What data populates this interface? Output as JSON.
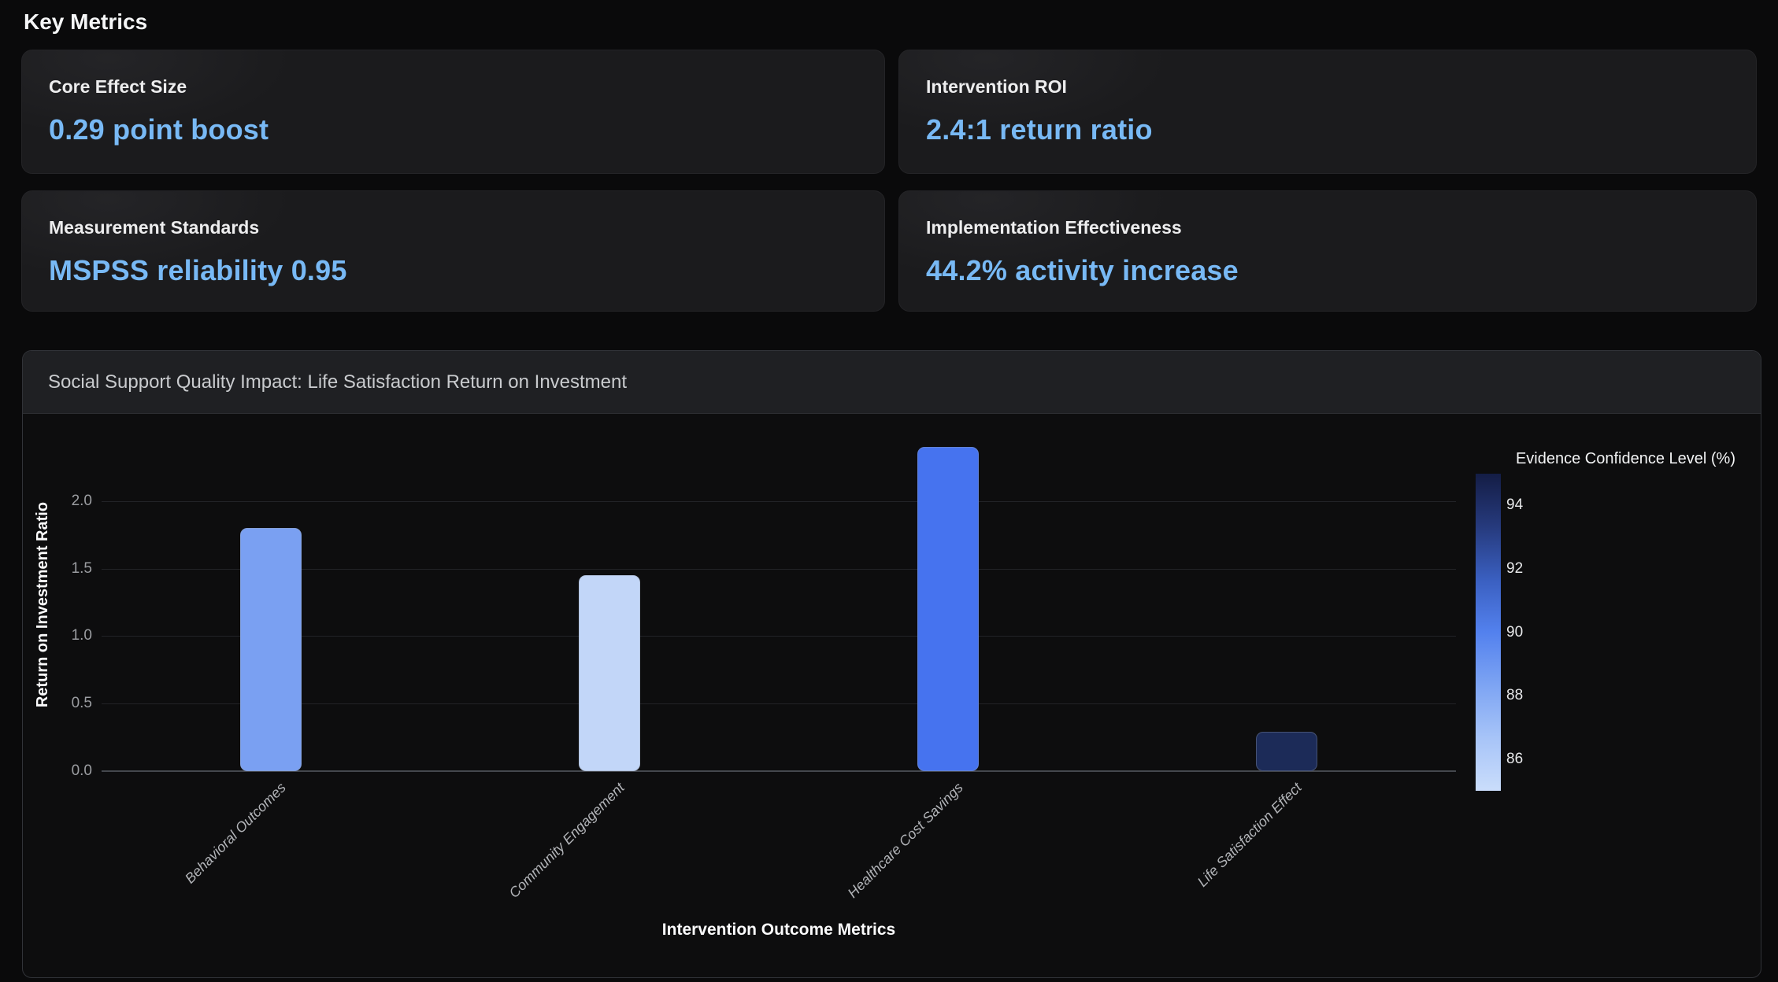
{
  "page": {
    "heading": "Key Metrics"
  },
  "metrics": [
    {
      "label": "Core Effect Size",
      "value": "0.29 point boost"
    },
    {
      "label": "Intervention ROI",
      "value": "2.4:1 return ratio"
    },
    {
      "label": "Measurement Standards",
      "value": "MSPSS reliability 0.95"
    },
    {
      "label": "Implementation Effectiveness",
      "value": "44.2% activity increase"
    }
  ],
  "colors": {
    "accent_value_text": "#78b9f5",
    "page_background": "#0a0a0b",
    "card_background": "#1b1b1d",
    "panel_background": "#0d0d0e",
    "panel_header": "#1f2023"
  },
  "chart_data": {
    "type": "bar",
    "title": "Social Support Quality Impact: Life Satisfaction Return on Investment",
    "xlabel": "Intervention Outcome Metrics",
    "ylabel": "Return on Investment Ratio",
    "categories": [
      "Behavioral Outcomes",
      "Community Engagement",
      "Healthcare Cost Savings",
      "Life Satisfaction Effect"
    ],
    "values": [
      1.8,
      1.45,
      2.4,
      0.29
    ],
    "bar_colors": [
      "#7aa0f2",
      "#c2d6f8",
      "#4673ef",
      "#1c2b58"
    ],
    "confidence_estimates": [
      88.5,
      85.5,
      91.0,
      94.8
    ],
    "yticks": [
      0.0,
      0.5,
      1.0,
      1.5,
      2.0
    ],
    "ylim": [
      0,
      2.47
    ],
    "grid": "horizontal",
    "colorbar": {
      "title": "Evidence Confidence Level (%)",
      "min": 85,
      "max": 95,
      "ticks": [
        94,
        92,
        90,
        88,
        86
      ],
      "gradient_top_to_bottom": [
        "#141d45",
        "#263a7d",
        "#3a5fc0",
        "#5381ee",
        "#7da4f3",
        "#a7c4f8",
        "#caddfb"
      ]
    }
  }
}
